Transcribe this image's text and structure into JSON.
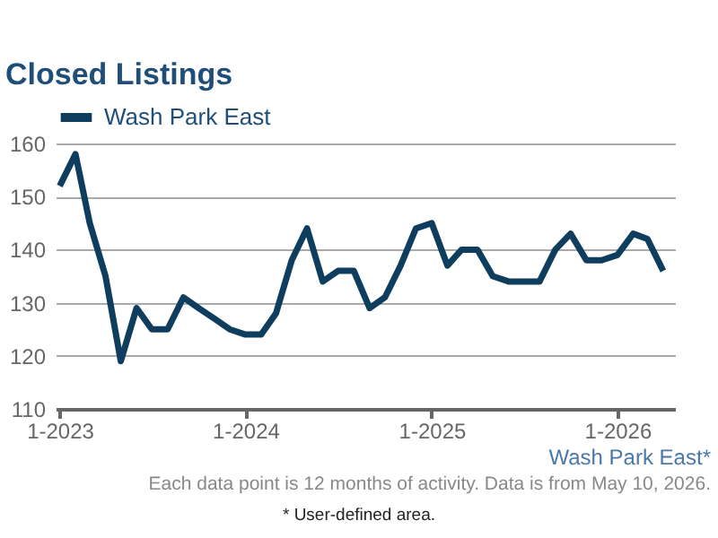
{
  "chart_data": {
    "type": "line",
    "title": "Closed Listings",
    "x": [
      "2023-01",
      "2023-02",
      "2023-03",
      "2023-04",
      "2023-05",
      "2023-06",
      "2023-07",
      "2023-08",
      "2023-09",
      "2023-10",
      "2023-11",
      "2023-12",
      "2024-01",
      "2024-02",
      "2024-03",
      "2024-04",
      "2024-05",
      "2024-06",
      "2024-07",
      "2024-08",
      "2024-09",
      "2024-10",
      "2024-11",
      "2024-12",
      "2025-01",
      "2025-02",
      "2025-03",
      "2025-04",
      "2025-05",
      "2025-06",
      "2025-07",
      "2025-08",
      "2025-09",
      "2025-10",
      "2025-11",
      "2025-12",
      "2026-01",
      "2026-02",
      "2026-03",
      "2026-04"
    ],
    "series": [
      {
        "name": "Wash Park East",
        "color": "#0e3d5e",
        "values": [
          152,
          158,
          145,
          135,
          119,
          129,
          125,
          125,
          131,
          129,
          127,
          125,
          124,
          124,
          128,
          138,
          144,
          134,
          136,
          136,
          129,
          131,
          137,
          144,
          145,
          137,
          140,
          140,
          135,
          134,
          134,
          134,
          140,
          143,
          138,
          138,
          139,
          143,
          142,
          136
        ]
      }
    ],
    "xlim": [
      "2022-12-24",
      "2026-04-24"
    ],
    "xticks": [
      {
        "value": "2023-01",
        "label": "1-2023"
      },
      {
        "value": "2024-01",
        "label": "1-2024"
      },
      {
        "value": "2025-01",
        "label": "1-2025"
      },
      {
        "value": "2026-01",
        "label": "1-2026"
      }
    ],
    "ylim": [
      110,
      160
    ],
    "yticks": [
      110,
      120,
      130,
      140,
      150,
      160
    ],
    "grid": "y",
    "legend": "top",
    "line_style": "solid",
    "annotations": [
      "Wash Park East*",
      "Each data point is 12 months of activity. Data is from May 10, 2026.",
      "* User-defined area."
    ]
  }
}
